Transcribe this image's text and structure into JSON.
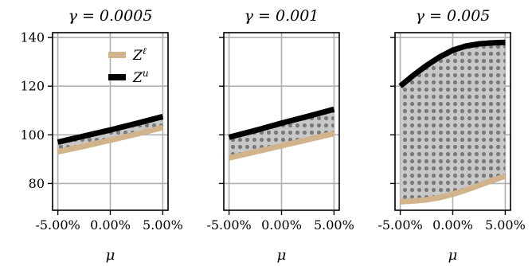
{
  "chart_data": [
    {
      "type": "line",
      "title": "γ = 0.0005",
      "xlabel": "μ",
      "ylabel": "",
      "xlim": [
        -0.05,
        0.05
      ],
      "ylim": [
        69,
        142
      ],
      "xticks": [
        "-5.00%",
        "0.00%",
        "5.00%"
      ],
      "yticks": [
        "80",
        "100",
        "120",
        "140"
      ],
      "grid": true,
      "fill_between": "grey-dotted",
      "legend": {
        "placement": "top-right"
      },
      "series": [
        {
          "name": "Z^ℓ",
          "color": "#d2b48c",
          "x": [
            -0.05,
            -0.025,
            0,
            0.025,
            0.05
          ],
          "y": [
            93,
            95.3,
            97.8,
            100.3,
            103
          ]
        },
        {
          "name": "Z^u",
          "color": "#000000",
          "x": [
            -0.05,
            -0.025,
            0,
            0.025,
            0.05
          ],
          "y": [
            97,
            99.5,
            102,
            104.7,
            107.5
          ]
        }
      ]
    },
    {
      "type": "line",
      "title": "γ = 0.001",
      "xlabel": "μ",
      "ylabel": "",
      "xlim": [
        -0.05,
        0.05
      ],
      "ylim": [
        69,
        142
      ],
      "xticks": [
        "-5.00%",
        "0.00%",
        "5.00%"
      ],
      "yticks": [
        "80",
        "100",
        "120",
        "140"
      ],
      "grid": true,
      "fill_between": "grey-dotted",
      "series": [
        {
          "name": "Z^ℓ",
          "color": "#d2b48c",
          "x": [
            -0.05,
            -0.025,
            0,
            0.025,
            0.05
          ],
          "y": [
            90.5,
            93,
            95.5,
            98,
            100.5
          ]
        },
        {
          "name": "Z^u",
          "color": "#000000",
          "x": [
            -0.05,
            -0.025,
            0,
            0.025,
            0.05
          ],
          "y": [
            99,
            101.8,
            104.8,
            107.6,
            110.5
          ]
        }
      ]
    },
    {
      "type": "line",
      "title": "γ = 0.005",
      "xlabel": "μ",
      "ylabel": "",
      "xlim": [
        -0.05,
        0.05
      ],
      "ylim": [
        69,
        142
      ],
      "xticks": [
        "-5.00%",
        "0.00%",
        "5.00%"
      ],
      "yticks": [
        "80",
        "100",
        "120",
        "140"
      ],
      "grid": true,
      "fill_between": "grey-dotted",
      "series": [
        {
          "name": "Z^ℓ",
          "color": "#d2b48c",
          "x": [
            -0.05,
            -0.0375,
            -0.025,
            -0.0125,
            0,
            0.0125,
            0.025,
            0.0375,
            0.05
          ],
          "y": [
            72.5,
            72.8,
            73.3,
            74.2,
            75.6,
            77.3,
            79.2,
            81.2,
            83
          ]
        },
        {
          "name": "Z^u",
          "color": "#000000",
          "x": [
            -0.05,
            -0.0375,
            -0.025,
            -0.0125,
            0,
            0.0125,
            0.025,
            0.0375,
            0.05
          ],
          "y": [
            120,
            124.5,
            128.5,
            132,
            134.8,
            136.5,
            137.4,
            137.8,
            138
          ]
        }
      ]
    }
  ],
  "legend_items": [
    {
      "base": "Z",
      "sup": "ℓ",
      "color": "#d2b48c"
    },
    {
      "base": "Z",
      "sup": "u",
      "color": "#000000"
    }
  ]
}
